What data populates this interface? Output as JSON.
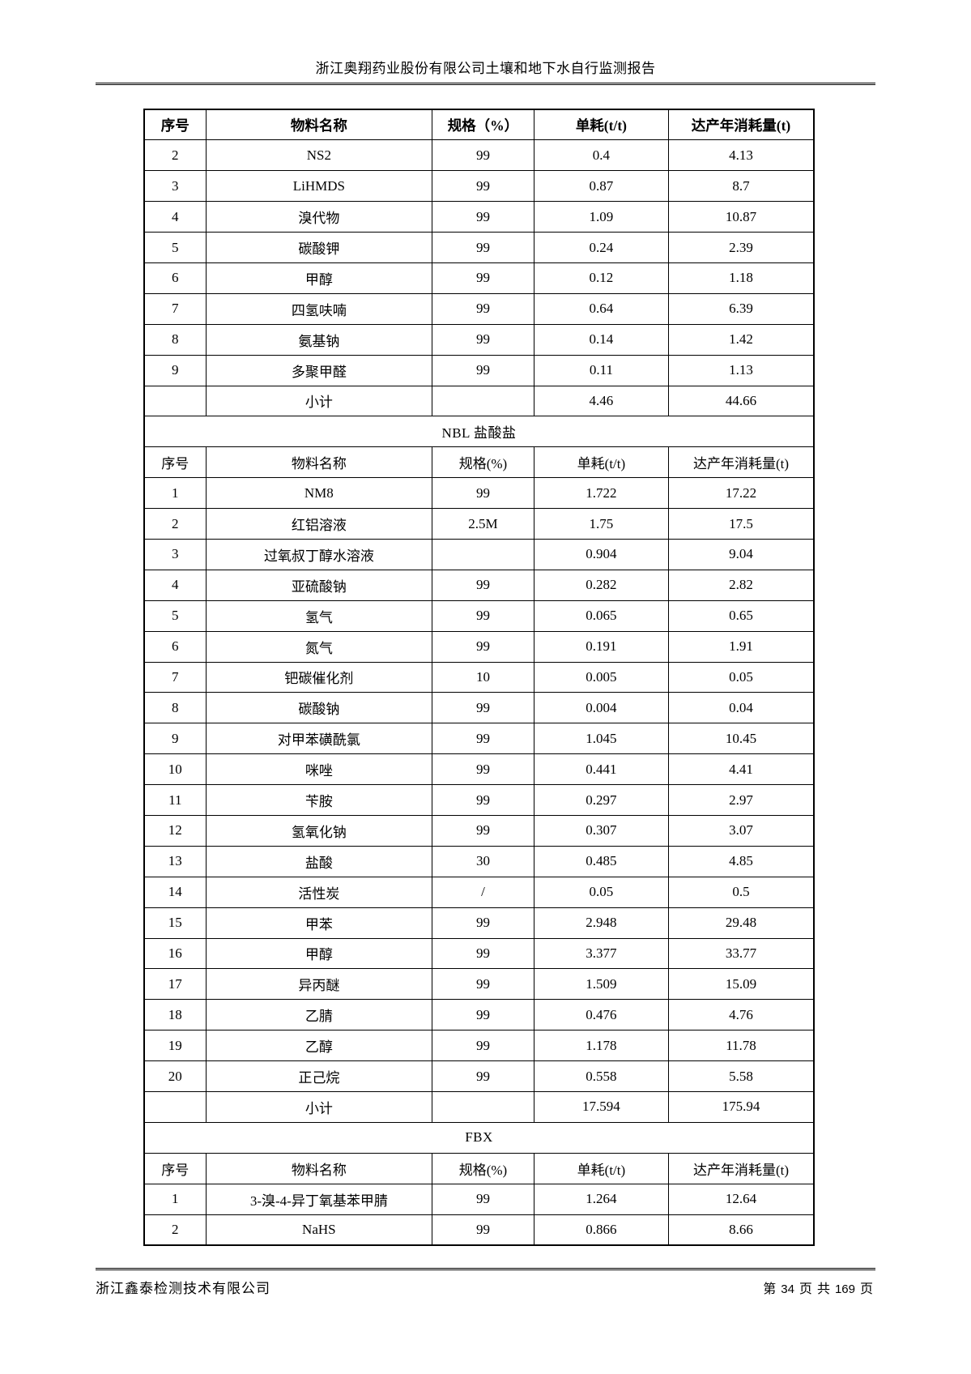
{
  "page_header": {
    "title": "浙江奥翔药业股份有限公司土壤和地下水自行监测报告"
  },
  "table": {
    "columns": [
      "序号",
      "物料名称",
      "规格（%）",
      "单耗(t/t)",
      "达产年消耗量(t)"
    ],
    "rows": [
      {
        "type": "header",
        "bold": true,
        "cells": [
          "序号",
          "物料名称",
          "规格（%）",
          "单耗(t/t)",
          "达产年消耗量(t)"
        ]
      },
      {
        "type": "data",
        "cells": [
          "2",
          "NS2",
          "99",
          "0.4",
          "4.13"
        ]
      },
      {
        "type": "data",
        "cells": [
          "3",
          "LiHMDS",
          "99",
          "0.87",
          "8.7"
        ]
      },
      {
        "type": "data",
        "cells": [
          "4",
          "溴代物",
          "99",
          "1.09",
          "10.87"
        ]
      },
      {
        "type": "data",
        "cells": [
          "5",
          "碳酸钾",
          "99",
          "0.24",
          "2.39"
        ]
      },
      {
        "type": "data",
        "cells": [
          "6",
          "甲醇",
          "99",
          "0.12",
          "1.18"
        ]
      },
      {
        "type": "data",
        "cells": [
          "7",
          "四氢呋喃",
          "99",
          "0.64",
          "6.39"
        ]
      },
      {
        "type": "data",
        "cells": [
          "8",
          "氨基钠",
          "99",
          "0.14",
          "1.42"
        ]
      },
      {
        "type": "data",
        "cells": [
          "9",
          "多聚甲醛",
          "99",
          "0.11",
          "1.13"
        ]
      },
      {
        "type": "subtotal",
        "cells": [
          "",
          "小计",
          "",
          "4.46",
          "44.66"
        ]
      },
      {
        "type": "section",
        "label": "NBL 盐酸盐"
      },
      {
        "type": "header",
        "bold": false,
        "cells": [
          "序号",
          "物料名称",
          "规格(%)",
          "单耗(t/t)",
          "达产年消耗量(t)"
        ]
      },
      {
        "type": "data",
        "cells": [
          "1",
          "NM8",
          "99",
          "1.722",
          "17.22"
        ]
      },
      {
        "type": "data",
        "cells": [
          "2",
          "红铝溶液",
          "2.5M",
          "1.75",
          "17.5"
        ]
      },
      {
        "type": "data",
        "cells": [
          "3",
          "过氧叔丁醇水溶液",
          "",
          "0.904",
          "9.04"
        ]
      },
      {
        "type": "data",
        "cells": [
          "4",
          "亚硫酸钠",
          "99",
          "0.282",
          "2.82"
        ]
      },
      {
        "type": "data",
        "cells": [
          "5",
          "氢气",
          "99",
          "0.065",
          "0.65"
        ]
      },
      {
        "type": "data",
        "cells": [
          "6",
          "氮气",
          "99",
          "0.191",
          "1.91"
        ]
      },
      {
        "type": "data",
        "cells": [
          "7",
          "钯碳催化剂",
          "10",
          "0.005",
          "0.05"
        ]
      },
      {
        "type": "data",
        "cells": [
          "8",
          "碳酸钠",
          "99",
          "0.004",
          "0.04"
        ]
      },
      {
        "type": "data",
        "cells": [
          "9",
          "对甲苯磺酰氯",
          "99",
          "1.045",
          "10.45"
        ]
      },
      {
        "type": "data",
        "cells": [
          "10",
          "咪唑",
          "99",
          "0.441",
          "4.41"
        ]
      },
      {
        "type": "data",
        "cells": [
          "11",
          "苄胺",
          "99",
          "0.297",
          "2.97"
        ]
      },
      {
        "type": "data",
        "cells": [
          "12",
          "氢氧化钠",
          "99",
          "0.307",
          "3.07"
        ]
      },
      {
        "type": "data",
        "cells": [
          "13",
          "盐酸",
          "30",
          "0.485",
          "4.85"
        ]
      },
      {
        "type": "data",
        "cells": [
          "14",
          "活性炭",
          "/",
          "0.05",
          "0.5"
        ]
      },
      {
        "type": "data",
        "cells": [
          "15",
          "甲苯",
          "99",
          "2.948",
          "29.48"
        ]
      },
      {
        "type": "data",
        "cells": [
          "16",
          "甲醇",
          "99",
          "3.377",
          "33.77"
        ]
      },
      {
        "type": "data",
        "cells": [
          "17",
          "异丙醚",
          "99",
          "1.509",
          "15.09"
        ]
      },
      {
        "type": "data",
        "cells": [
          "18",
          "乙腈",
          "99",
          "0.476",
          "4.76"
        ]
      },
      {
        "type": "data",
        "cells": [
          "19",
          "乙醇",
          "99",
          "1.178",
          "11.78"
        ]
      },
      {
        "type": "data",
        "cells": [
          "20",
          "正己烷",
          "99",
          "0.558",
          "5.58"
        ]
      },
      {
        "type": "subtotal",
        "cells": [
          "",
          "小计",
          "",
          "17.594",
          "175.94"
        ]
      },
      {
        "type": "section",
        "label": "FBX"
      },
      {
        "type": "header",
        "bold": false,
        "cells": [
          "序号",
          "物料名称",
          "规格(%)",
          "单耗(t/t)",
          "达产年消耗量(t)"
        ]
      },
      {
        "type": "data",
        "cells": [
          "1",
          "3-溴-4-异丁氧基苯甲腈",
          "99",
          "1.264",
          "12.64"
        ]
      },
      {
        "type": "data",
        "cells": [
          "2",
          "NaHS",
          "99",
          "0.866",
          "8.66"
        ]
      }
    ]
  },
  "page_footer": {
    "company": "浙江鑫泰检测技术有限公司",
    "page_label_prefix": "第",
    "current_page": "34",
    "label_page": "页",
    "label_total": "共",
    "total_pages": "169",
    "page_label_suffix": "页"
  }
}
